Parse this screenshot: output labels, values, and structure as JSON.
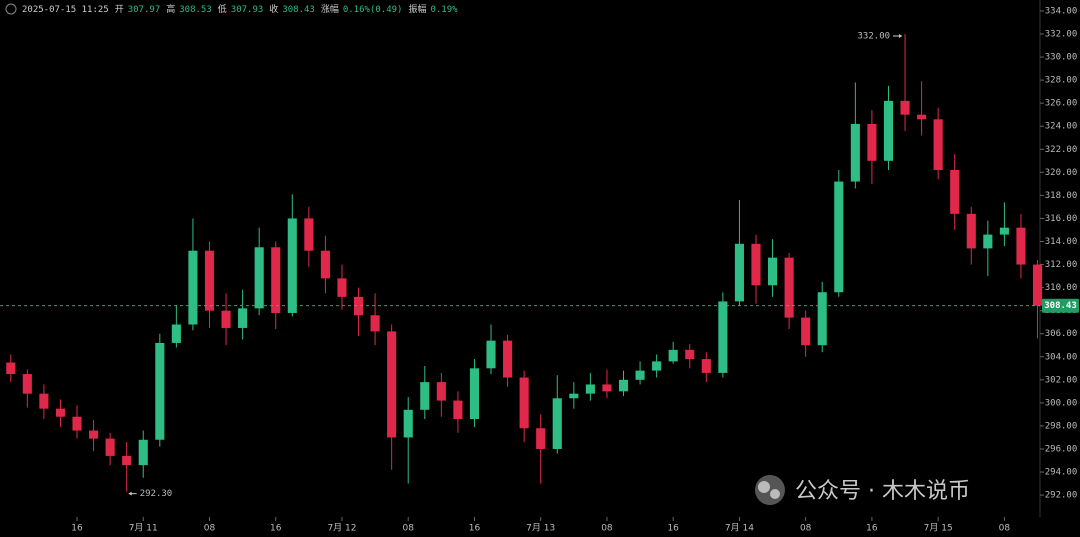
{
  "header": {
    "time": "2025-07-15 11:25",
    "fields": [
      {
        "label": "开",
        "value": "307.97"
      },
      {
        "label": "高",
        "value": "308.53"
      },
      {
        "label": "低",
        "value": "307.93"
      },
      {
        "label": "收",
        "value": "308.43"
      },
      {
        "label": "涨幅",
        "value": "0.16%(0.49)"
      },
      {
        "label": "振幅",
        "value": "0.19%"
      }
    ]
  },
  "watermark": "公众号 · 木木说币",
  "chart_data": {
    "type": "candlestick",
    "up_color": "#2ebd85",
    "down_color": "#e0294a",
    "x": [
      8,
      10,
      12,
      14,
      16,
      18,
      20,
      22,
      24,
      26,
      28,
      30,
      32,
      34,
      36,
      38,
      40,
      42,
      44,
      46,
      48,
      50,
      52,
      54,
      56,
      58,
      60,
      62,
      64,
      66,
      68,
      70,
      72,
      74,
      76,
      78,
      80,
      82,
      84,
      86,
      88,
      90,
      92,
      94,
      96,
      98,
      100,
      102,
      104,
      106,
      108,
      110,
      112,
      114,
      116,
      118,
      120,
      122,
      124,
      126,
      128,
      130,
      132
    ],
    "open": [
      303.5,
      302.5,
      300.8,
      299.5,
      298.8,
      297.6,
      296.9,
      295.4,
      294.6,
      296.8,
      305.2,
      306.8,
      313.2,
      308.0,
      306.5,
      308.2,
      313.5,
      307.8,
      316.0,
      313.2,
      310.8,
      309.2,
      307.6,
      306.2,
      297.0,
      299.4,
      301.8,
      300.2,
      298.6,
      303.0,
      305.4,
      302.2,
      297.8,
      296.0,
      300.4,
      300.8,
      301.6,
      301.0,
      302.0,
      302.8,
      303.6,
      304.6,
      303.8,
      302.6,
      308.8,
      313.8,
      310.2,
      312.6,
      307.4,
      305.0,
      309.6,
      319.2,
      324.2,
      321.0,
      326.2,
      325.0,
      324.6,
      320.2,
      316.4,
      313.4,
      314.6,
      315.2,
      312.0
    ],
    "high": [
      304.2,
      302.9,
      301.6,
      300.3,
      299.8,
      298.5,
      297.4,
      296.6,
      297.6,
      306.0,
      308.5,
      316.0,
      314.0,
      309.5,
      309.8,
      315.2,
      314.0,
      318.1,
      317.0,
      314.5,
      312.0,
      310.0,
      309.5,
      306.8,
      300.5,
      303.2,
      302.6,
      301.0,
      303.8,
      306.8,
      305.9,
      302.8,
      299.0,
      302.4,
      301.8,
      302.6,
      302.9,
      302.8,
      303.6,
      304.2,
      305.3,
      305.1,
      304.4,
      309.6,
      317.6,
      314.6,
      314.2,
      313.0,
      308.0,
      310.5,
      320.2,
      327.8,
      325.4,
      327.5,
      332.0,
      327.9,
      325.6,
      321.6,
      317.0,
      315.8,
      317.4,
      316.4,
      312.4
    ],
    "low": [
      301.8,
      299.6,
      298.6,
      297.9,
      296.9,
      295.8,
      294.6,
      292.3,
      293.5,
      296.2,
      304.8,
      306.3,
      306.5,
      305.0,
      305.5,
      307.6,
      306.4,
      307.5,
      311.8,
      309.5,
      308.1,
      305.8,
      305.0,
      294.2,
      293.0,
      298.6,
      298.8,
      297.4,
      297.9,
      302.5,
      301.4,
      296.6,
      293.0,
      295.6,
      299.5,
      300.2,
      300.4,
      300.6,
      301.6,
      302.2,
      303.4,
      303.0,
      301.8,
      302.2,
      308.4,
      308.6,
      309.2,
      306.4,
      304.0,
      304.4,
      309.2,
      318.6,
      319.0,
      320.2,
      323.6,
      323.2,
      319.4,
      315.0,
      312.0,
      311.0,
      313.6,
      310.8,
      305.6
    ],
    "close": [
      302.5,
      300.8,
      299.5,
      298.8,
      297.6,
      296.9,
      295.4,
      294.6,
      296.8,
      305.2,
      306.8,
      313.2,
      308.0,
      306.5,
      308.2,
      313.5,
      307.8,
      316.0,
      313.2,
      310.8,
      309.2,
      307.6,
      306.2,
      297.0,
      299.4,
      301.8,
      300.2,
      298.6,
      303.0,
      305.4,
      302.2,
      297.8,
      296.0,
      300.4,
      300.8,
      301.6,
      301.0,
      302.0,
      302.8,
      303.6,
      304.6,
      303.8,
      302.6,
      308.8,
      313.8,
      310.2,
      312.6,
      307.4,
      305.0,
      309.6,
      319.2,
      324.2,
      321.0,
      326.2,
      325.0,
      324.6,
      320.2,
      316.4,
      313.4,
      314.6,
      315.2,
      312.0,
      308.43
    ],
    "xlim": [
      6.7,
      132.3
    ],
    "ylim": [
      290.1,
      334.95
    ],
    "grid": false,
    "xticks": [
      {
        "value": 16,
        "label": "16"
      },
      {
        "value": 24,
        "label": "7月 11"
      },
      {
        "value": 32,
        "label": "08"
      },
      {
        "value": 40,
        "label": "16"
      },
      {
        "value": 48,
        "label": "7月 12"
      },
      {
        "value": 56,
        "label": "08"
      },
      {
        "value": 64,
        "label": "16"
      },
      {
        "value": 72,
        "label": "7月 13"
      },
      {
        "value": 80,
        "label": "08"
      },
      {
        "value": 88,
        "label": "16"
      },
      {
        "value": 96,
        "label": "7月 14"
      },
      {
        "value": 104,
        "label": "08"
      },
      {
        "value": 112,
        "label": "16"
      },
      {
        "value": 120,
        "label": "7月 15"
      },
      {
        "value": 128,
        "label": "08"
      }
    ],
    "yticks": [
      {
        "value": 292,
        "label": "292.00"
      },
      {
        "value": 294,
        "label": "294.00"
      },
      {
        "value": 296,
        "label": "296.00"
      },
      {
        "value": 298,
        "label": "298.00"
      },
      {
        "value": 300,
        "label": "300.00"
      },
      {
        "value": 302,
        "label": "302.00"
      },
      {
        "value": 304,
        "label": "304.00"
      },
      {
        "value": 306,
        "label": "306.00"
      },
      {
        "value": 308,
        "label": "308.00"
      },
      {
        "value": 310,
        "label": "310.00"
      },
      {
        "value": 312,
        "label": "312.00"
      },
      {
        "value": 314,
        "label": "314.00"
      },
      {
        "value": 316,
        "label": "316.00"
      },
      {
        "value": 318,
        "label": "318.00"
      },
      {
        "value": 320,
        "label": "320.00"
      },
      {
        "value": 322,
        "label": "322.00"
      },
      {
        "value": 324,
        "label": "324.00"
      },
      {
        "value": 326,
        "label": "326.00"
      },
      {
        "value": 328,
        "label": "328.00"
      },
      {
        "value": 330,
        "label": "330.00"
      },
      {
        "value": 332,
        "label": "332.00"
      },
      {
        "value": 334,
        "label": "334.00"
      }
    ],
    "last_price": {
      "value": 308.43,
      "label": "308.43"
    },
    "annotations": [
      {
        "x": 116,
        "value": 332.0,
        "label": "332.00",
        "side": "left"
      },
      {
        "x": 22,
        "value": 292.3,
        "label": "292.30",
        "side": "right"
      }
    ]
  }
}
